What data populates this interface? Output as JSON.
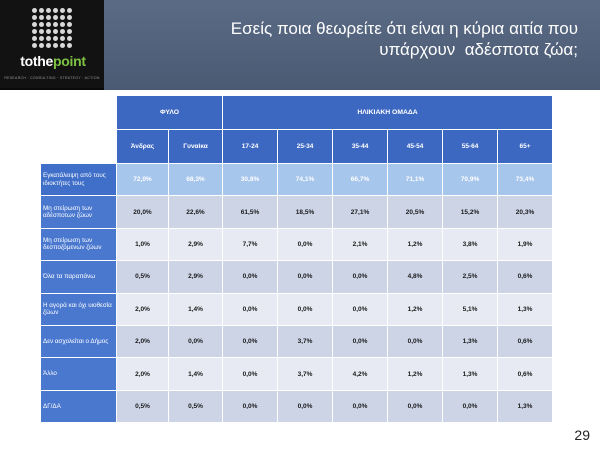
{
  "header": {
    "logo_main": "tothe",
    "logo_accent": "point",
    "logo_tagline": "RESEARCH · CONSULTING · STRATEGY · ACTION",
    "title_line1": "Εσείς ποια θεωρείτε ότι είναι η κύρια αιτία που",
    "title_line2": "υπάρχουν  αδέσποτα ζώα;"
  },
  "table": {
    "group_headers": [
      "ΦΥΛΟ",
      "ΗΛΙΚΙΑΚΗ ΟΜΑΔΑ"
    ],
    "columns": [
      "Άνδρας",
      "Γυναίκα",
      "17-24",
      "25-34",
      "35-44",
      "45-54",
      "55-64",
      "65+"
    ],
    "rows": [
      {
        "label": "Εγκατάλειψη από τους ιδιοκτήτες τους",
        "values": [
          "72,0%",
          "68,3%",
          "30,8%",
          "74,1%",
          "66,7%",
          "71,1%",
          "70,9%",
          "73,4%"
        ]
      },
      {
        "label": "Μη στείρωση των αδέσποτων ζώων",
        "values": [
          "20,0%",
          "22,6%",
          "61,5%",
          "18,5%",
          "27,1%",
          "20,5%",
          "15,2%",
          "20,3%"
        ]
      },
      {
        "label": "Μη στείρωση των δεσποζόμενων ζώων",
        "values": [
          "1,0%",
          "2,9%",
          "7,7%",
          "0,0%",
          "2,1%",
          "1,2%",
          "3,8%",
          "1,9%"
        ]
      },
      {
        "label": "Όλα τα παραπάνω",
        "values": [
          "0,5%",
          "2,9%",
          "0,0%",
          "0,0%",
          "0,0%",
          "4,8%",
          "2,5%",
          "0,6%"
        ]
      },
      {
        "label": "Η αγορά και όχι υιοθεσία ζώων",
        "values": [
          "2,0%",
          "1,4%",
          "0,0%",
          "0,0%",
          "0,0%",
          "1,2%",
          "5,1%",
          "1,3%"
        ]
      },
      {
        "label": "Δεν ασχολείται ο Δήμος",
        "values": [
          "2,0%",
          "0,0%",
          "0,0%",
          "3,7%",
          "0,0%",
          "0,0%",
          "1,3%",
          "0,6%"
        ]
      },
      {
        "label": "Άλλο",
        "values": [
          "2,0%",
          "1,4%",
          "0,0%",
          "3,7%",
          "4,2%",
          "1,2%",
          "1,3%",
          "0,6%"
        ]
      },
      {
        "label": "ΔΓ/ΔΑ",
        "values": [
          "0,5%",
          "0,5%",
          "0,0%",
          "0,0%",
          "0,0%",
          "0,0%",
          "0,0%",
          "1,3%"
        ]
      }
    ]
  },
  "page_number": "29",
  "colors": {
    "header_band": "#4f5f79",
    "table_header": "#3d68c2",
    "highlight_row": "#a7c6ec",
    "row_shade_a": "#ccd4e6",
    "row_shade_b": "#e7eaf2",
    "logo_accent": "#7ec242"
  }
}
